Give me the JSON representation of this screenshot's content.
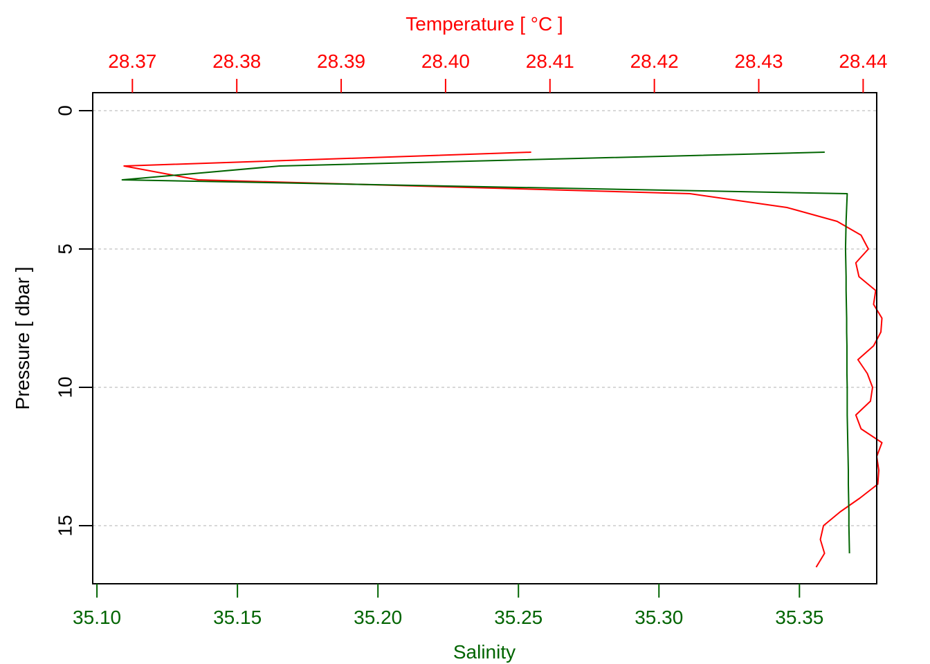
{
  "chart_data": {
    "type": "line",
    "y_axis": {
      "label": "Pressure [ dbar ]",
      "range": [
        17.1,
        -0.65
      ],
      "inverted": true,
      "ticks": [
        0,
        5,
        10,
        15
      ],
      "tick_labels": [
        "0",
        "5",
        "10",
        "15"
      ],
      "color": "#000000"
    },
    "top_axis": {
      "label": "Temperature [ °C ]",
      "range": [
        28.3662,
        28.4413
      ],
      "ticks": [
        28.37,
        28.38,
        28.39,
        28.4,
        28.41,
        28.42,
        28.43,
        28.44
      ],
      "tick_labels": [
        "28.37",
        "28.38",
        "28.39",
        "28.40",
        "28.41",
        "28.42",
        "28.43",
        "28.44"
      ],
      "color": "#ff0000"
    },
    "bottom_axis": {
      "label": "Salinity",
      "range": [
        35.0985,
        35.3775
      ],
      "ticks": [
        35.1,
        35.15,
        35.2,
        35.25,
        35.3,
        35.35
      ],
      "tick_labels": [
        "35.10",
        "35.15",
        "35.20",
        "35.25",
        "35.30",
        "35.35"
      ],
      "color": "#006400"
    },
    "grid": {
      "horizontal": true,
      "style": "dotted",
      "color": "#cccccc"
    },
    "series": [
      {
        "axis": "top",
        "color": "#ff0000",
        "points": [
          [
            28.4082,
            1.5
          ],
          [
            28.3692,
            2.0
          ],
          [
            28.3763,
            2.5
          ],
          [
            28.4234,
            3.0
          ],
          [
            28.4327,
            3.5
          ],
          [
            28.4375,
            4.0
          ],
          [
            28.4398,
            4.5
          ],
          [
            28.4405,
            5.0
          ],
          [
            28.4393,
            5.5
          ],
          [
            28.4396,
            6.0
          ],
          [
            28.4412,
            6.5
          ],
          [
            28.441,
            7.0
          ],
          [
            28.4418,
            7.5
          ],
          [
            28.4417,
            8.0
          ],
          [
            28.441,
            8.5
          ],
          [
            28.4395,
            9.0
          ],
          [
            28.4404,
            9.5
          ],
          [
            28.4409,
            10.0
          ],
          [
            28.4407,
            10.5
          ],
          [
            28.4393,
            11.0
          ],
          [
            28.4398,
            11.5
          ],
          [
            28.4418,
            12.0
          ],
          [
            28.4413,
            12.5
          ],
          [
            28.4415,
            13.0
          ],
          [
            28.4414,
            13.5
          ],
          [
            28.4397,
            14.0
          ],
          [
            28.4378,
            14.5
          ],
          [
            28.4362,
            15.0
          ],
          [
            28.4359,
            15.5
          ],
          [
            28.4363,
            16.0
          ],
          [
            28.4355,
            16.5
          ]
        ]
      },
      {
        "axis": "bottom",
        "color": "#006400",
        "points": [
          [
            35.359,
            1.5
          ],
          [
            35.165,
            2.0
          ],
          [
            35.109,
            2.5
          ],
          [
            35.367,
            3.0
          ],
          [
            35.3668,
            3.5
          ],
          [
            35.3666,
            4.0
          ],
          [
            35.3665,
            4.5
          ],
          [
            35.3664,
            5.0
          ],
          [
            35.3665,
            5.5
          ],
          [
            35.3666,
            6.0
          ],
          [
            35.3666,
            6.5
          ],
          [
            35.3667,
            7.0
          ],
          [
            35.3668,
            7.5
          ],
          [
            35.3668,
            8.0
          ],
          [
            35.3669,
            8.5
          ],
          [
            35.3669,
            9.0
          ],
          [
            35.3669,
            9.5
          ],
          [
            35.367,
            10.0
          ],
          [
            35.367,
            10.5
          ],
          [
            35.367,
            11.0
          ],
          [
            35.3671,
            11.5
          ],
          [
            35.3672,
            12.0
          ],
          [
            35.3673,
            12.5
          ],
          [
            35.3674,
            13.0
          ],
          [
            35.3674,
            13.5
          ],
          [
            35.3675,
            14.0
          ],
          [
            35.3676,
            14.5
          ],
          [
            35.3676,
            15.0
          ],
          [
            35.3677,
            15.5
          ],
          [
            35.3678,
            16.0
          ]
        ]
      }
    ]
  }
}
